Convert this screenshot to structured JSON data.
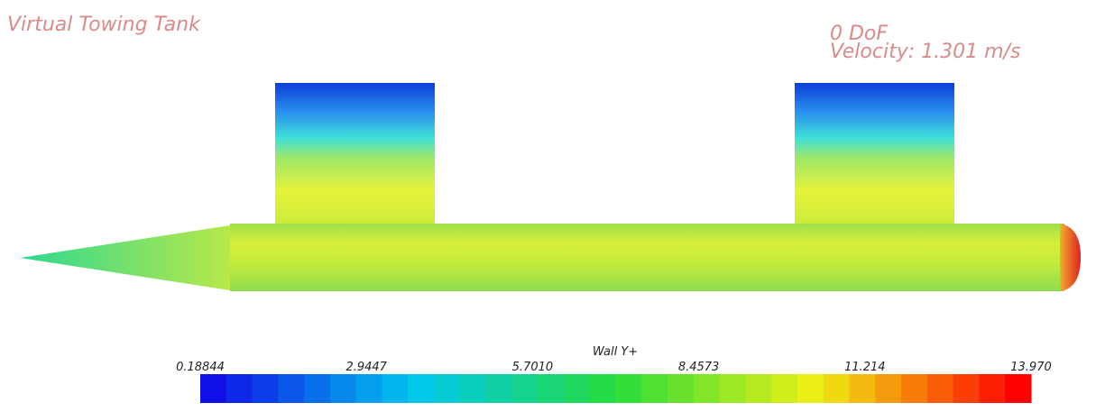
{
  "header": {
    "title": "Virtual Towing Tank"
  },
  "annotations": [
    "0 DoF",
    "Velocity: 1.301 m/s"
  ],
  "colorbar": {
    "title": "Wall Y+",
    "ticks": [
      {
        "value": 0.18844,
        "label": "0.18844"
      },
      {
        "value": 2.9447,
        "label": "2.9447"
      },
      {
        "value": 5.701,
        "label": "5.7010"
      },
      {
        "value": 8.4573,
        "label": "8.4573"
      },
      {
        "value": 11.214,
        "label": "11.214"
      },
      {
        "value": 13.97,
        "label": "13.970"
      }
    ]
  }
}
